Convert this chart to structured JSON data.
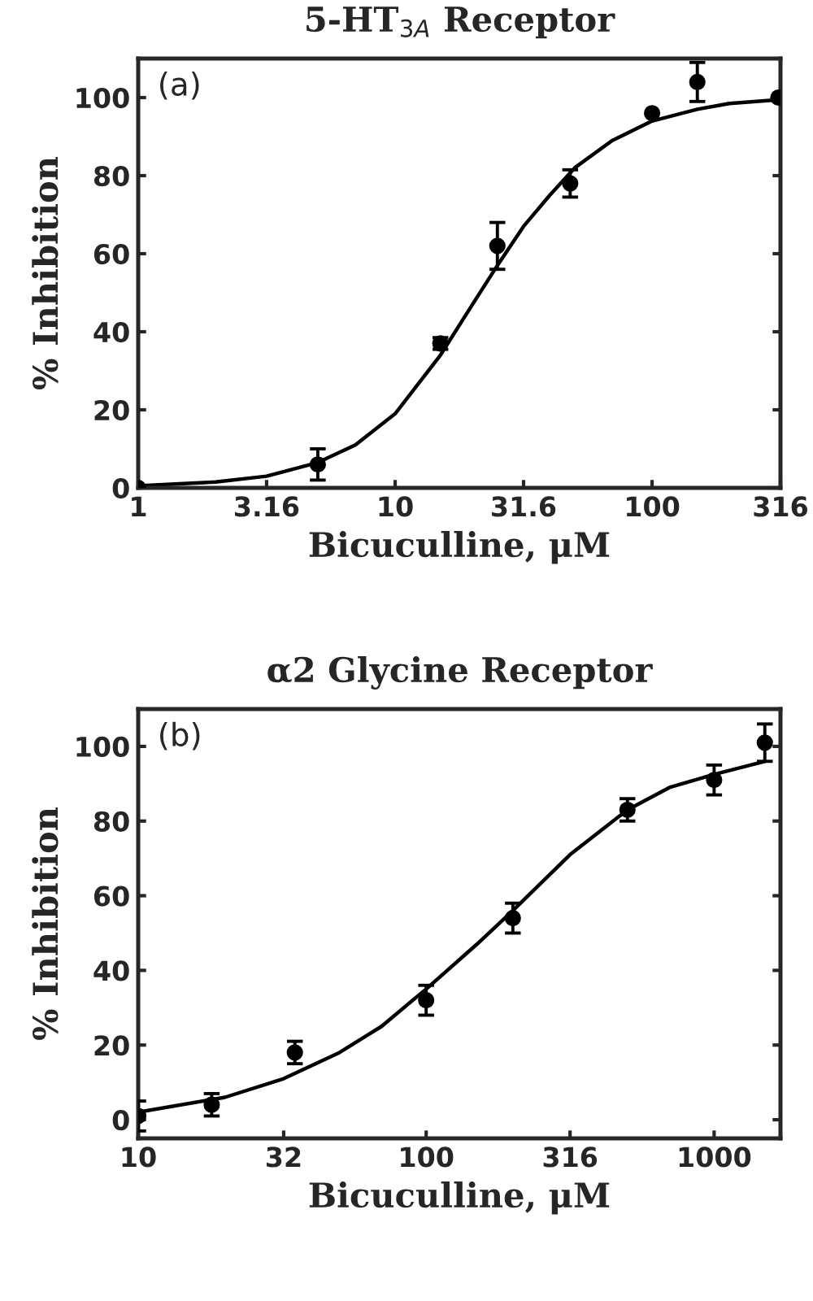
{
  "chart_data": [
    {
      "type": "scatter",
      "title": "5-HT$_{3A}$ Receptor",
      "xlabel": "Bicuculline, μM",
      "ylabel": "% Inhibition",
      "annotations": [
        "(a)"
      ],
      "log": "x",
      "xlim": [
        1,
        316
      ],
      "xticks": [
        1,
        3.16,
        10,
        31.6,
        100,
        316
      ],
      "ylim": [
        0,
        110
      ],
      "yticks": [
        0,
        20,
        40,
        60,
        80,
        100
      ],
      "series": [
        {
          "marker": "circle",
          "color": "#000000",
          "x": [
            1,
            5,
            15,
            25,
            48,
            100,
            150,
            310
          ],
          "values": [
            0,
            6,
            37,
            62,
            78,
            96,
            104,
            100
          ],
          "errors": [
            null,
            4,
            1.5,
            6,
            3.5,
            null,
            5,
            null
          ]
        },
        {
          "type": "line",
          "color": "#000000",
          "x": [
            1,
            2,
            3.16,
            5,
            7,
            10,
            15,
            20,
            25,
            31.6,
            40,
            50,
            70,
            100,
            150,
            200,
            316
          ],
          "values": [
            0.5,
            1.5,
            3,
            6.5,
            11,
            19,
            34,
            47,
            57,
            67,
            75,
            82,
            89,
            94,
            97,
            98.5,
            99.5
          ]
        }
      ]
    },
    {
      "type": "scatter",
      "title": "α2 Glycine Receptor",
      "xlabel": "Bicuculline, μM",
      "ylabel": "% Inhibition",
      "annotations": [
        "(b)"
      ],
      "log": "x",
      "xlim": [
        10,
        1700
      ],
      "xticks": [
        10,
        32,
        100,
        316,
        1000
      ],
      "ylim": [
        -5,
        110
      ],
      "yticks": [
        0,
        20,
        40,
        60,
        80,
        100
      ],
      "series": [
        {
          "marker": "circle",
          "color": "#000000",
          "x": [
            10,
            18,
            35,
            100,
            200,
            500,
            1000,
            1500
          ],
          "values": [
            1,
            4,
            18,
            32,
            54,
            83,
            91,
            101
          ],
          "errors": [
            4,
            3,
            3,
            4,
            4,
            3,
            4,
            5
          ]
        },
        {
          "type": "line",
          "color": "#000000",
          "x": [
            10,
            20,
            32,
            50,
            70,
            100,
            150,
            200,
            316,
            500,
            700,
            1000,
            1500
          ],
          "values": [
            2,
            6,
            11,
            18,
            25,
            35,
            47,
            56,
            71,
            83,
            89,
            92.5,
            96
          ]
        }
      ]
    }
  ]
}
